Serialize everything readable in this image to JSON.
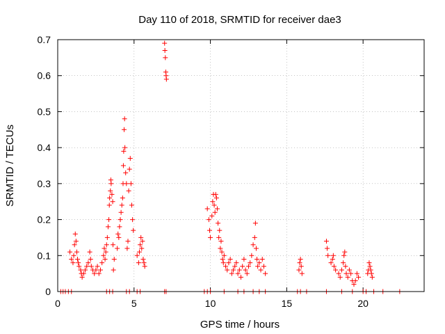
{
  "chart_data": {
    "type": "scatter",
    "title": "Day 110 of 2018, SRMTID for receiver dae3",
    "xlabel": "GPS time / hours",
    "ylabel": "SRMTID / TECUs",
    "xlim": [
      0,
      24
    ],
    "ylim": [
      0,
      0.7
    ],
    "xticks": [
      0,
      5,
      10,
      15,
      20
    ],
    "yticks": [
      0,
      0.1,
      0.2,
      0.3,
      0.4,
      0.5,
      0.6,
      0.7
    ],
    "xtick_labels": [
      "0",
      "5",
      "10",
      "15",
      "20"
    ],
    "ytick_labels": [
      "0",
      "0.1",
      "0.2",
      "0.3",
      "0.4",
      "0.5",
      "0.6",
      "0.7"
    ],
    "grid": true,
    "marker": "+",
    "marker_color": "#ff0000",
    "series": [
      {
        "name": "SRMTID",
        "points": [
          [
            0.2,
            0
          ],
          [
            0.35,
            0
          ],
          [
            0.5,
            0
          ],
          [
            0.7,
            0
          ],
          [
            0.9,
            0
          ],
          [
            0.8,
            0.11
          ],
          [
            0.9,
            0.09
          ],
          [
            1.0,
            0.08
          ],
          [
            1.05,
            0.1
          ],
          [
            1.1,
            0.13
          ],
          [
            1.15,
            0.16
          ],
          [
            1.2,
            0.14
          ],
          [
            1.25,
            0.11
          ],
          [
            1.3,
            0.09
          ],
          [
            1.35,
            0.08
          ],
          [
            1.4,
            0.07
          ],
          [
            1.5,
            0.06
          ],
          [
            1.55,
            0.05
          ],
          [
            1.6,
            0.04
          ],
          [
            1.7,
            0.05
          ],
          [
            1.8,
            0.06
          ],
          [
            1.9,
            0.07
          ],
          [
            2.0,
            0.08
          ],
          [
            2.1,
            0.11
          ],
          [
            2.15,
            0.09
          ],
          [
            2.2,
            0.07
          ],
          [
            2.3,
            0.06
          ],
          [
            2.4,
            0.05
          ],
          [
            2.5,
            0.06
          ],
          [
            2.6,
            0.07
          ],
          [
            2.7,
            0.05
          ],
          [
            2.8,
            0.06
          ],
          [
            2.9,
            0.08
          ],
          [
            3.0,
            0.1
          ],
          [
            3.05,
            0.12
          ],
          [
            3.1,
            0.09
          ],
          [
            3.15,
            0.11
          ],
          [
            3.2,
            0.13
          ],
          [
            3.25,
            0.15
          ],
          [
            3.3,
            0.18
          ],
          [
            3.35,
            0.2
          ],
          [
            3.38,
            0.24
          ],
          [
            3.4,
            0.26
          ],
          [
            3.45,
            0.28
          ],
          [
            3.48,
            0.31
          ],
          [
            3.5,
            0.3
          ],
          [
            3.55,
            0.27
          ],
          [
            3.6,
            0.25
          ],
          [
            3.62,
            0.13
          ],
          [
            3.65,
            0.06
          ],
          [
            3.7,
            0.09
          ],
          [
            3.9,
            0.12
          ],
          [
            3.95,
            0.16
          ],
          [
            4.0,
            0.15
          ],
          [
            4.05,
            0.18
          ],
          [
            4.1,
            0.2
          ],
          [
            4.15,
            0.22
          ],
          [
            4.2,
            0.24
          ],
          [
            4.25,
            0.26
          ],
          [
            4.28,
            0.3
          ],
          [
            4.3,
            0.35
          ],
          [
            4.32,
            0.39
          ],
          [
            4.35,
            0.45
          ],
          [
            4.38,
            0.48
          ],
          [
            4.4,
            0.4
          ],
          [
            4.45,
            0.33
          ],
          [
            4.5,
            0.3
          ],
          [
            4.55,
            0.12
          ],
          [
            4.6,
            0.14
          ],
          [
            4.65,
            0.28
          ],
          [
            4.7,
            0.34
          ],
          [
            4.75,
            0.37
          ],
          [
            4.8,
            0.3
          ],
          [
            4.85,
            0.24
          ],
          [
            4.9,
            0.2
          ],
          [
            4.95,
            0.17
          ],
          [
            5.2,
            0.1
          ],
          [
            5.3,
            0.08
          ],
          [
            5.35,
            0.11
          ],
          [
            5.4,
            0.13
          ],
          [
            5.45,
            0.15
          ],
          [
            5.5,
            0.12
          ],
          [
            5.55,
            0.14
          ],
          [
            5.6,
            0.09
          ],
          [
            5.65,
            0.08
          ],
          [
            5.7,
            0.07
          ],
          [
            7.0,
            0.69
          ],
          [
            7.02,
            0.67
          ],
          [
            7.05,
            0.65
          ],
          [
            7.08,
            0.61
          ],
          [
            7.1,
            0.6
          ],
          [
            7.12,
            0.59
          ],
          [
            9.8,
            0.23
          ],
          [
            9.9,
            0.2
          ],
          [
            9.95,
            0.17
          ],
          [
            10.0,
            0.15
          ],
          [
            10.1,
            0.21
          ],
          [
            10.15,
            0.25
          ],
          [
            10.2,
            0.27
          ],
          [
            10.25,
            0.24
          ],
          [
            10.3,
            0.22
          ],
          [
            10.35,
            0.27
          ],
          [
            10.4,
            0.26
          ],
          [
            10.45,
            0.23
          ],
          [
            10.5,
            0.19
          ],
          [
            10.55,
            0.15
          ],
          [
            10.6,
            0.17
          ],
          [
            10.65,
            0.12
          ],
          [
            10.7,
            0.14
          ],
          [
            10.75,
            0.11
          ],
          [
            10.8,
            0.09
          ],
          [
            10.85,
            0.08
          ],
          [
            10.9,
            0.1
          ],
          [
            11.0,
            0.07
          ],
          [
            11.1,
            0.06
          ],
          [
            11.2,
            0.08
          ],
          [
            11.3,
            0.09
          ],
          [
            11.4,
            0.05
          ],
          [
            11.5,
            0.06
          ],
          [
            11.6,
            0.07
          ],
          [
            11.7,
            0.08
          ],
          [
            11.8,
            0.05
          ],
          [
            11.9,
            0.06
          ],
          [
            12.0,
            0.04
          ],
          [
            12.1,
            0.07
          ],
          [
            12.2,
            0.09
          ],
          [
            12.3,
            0.06
          ],
          [
            12.4,
            0.05
          ],
          [
            12.5,
            0.07
          ],
          [
            12.6,
            0.08
          ],
          [
            12.7,
            0.1
          ],
          [
            12.8,
            0.13
          ],
          [
            12.9,
            0.15
          ],
          [
            12.95,
            0.19
          ],
          [
            13.0,
            0.12
          ],
          [
            13.05,
            0.09
          ],
          [
            13.1,
            0.07
          ],
          [
            13.2,
            0.08
          ],
          [
            13.3,
            0.06
          ],
          [
            13.4,
            0.09
          ],
          [
            13.5,
            0.07
          ],
          [
            13.6,
            0.05
          ],
          [
            15.8,
            0.06
          ],
          [
            15.85,
            0.08
          ],
          [
            15.9,
            0.09
          ],
          [
            15.95,
            0.07
          ],
          [
            16.0,
            0.05
          ],
          [
            17.6,
            0.14
          ],
          [
            17.65,
            0.12
          ],
          [
            17.7,
            0.1
          ],
          [
            17.9,
            0.08
          ],
          [
            18.0,
            0.09
          ],
          [
            18.05,
            0.1
          ],
          [
            18.1,
            0.07
          ],
          [
            18.2,
            0.06
          ],
          [
            18.4,
            0.05
          ],
          [
            18.5,
            0.04
          ],
          [
            18.6,
            0.06
          ],
          [
            18.7,
            0.08
          ],
          [
            18.75,
            0.1
          ],
          [
            18.8,
            0.11
          ],
          [
            18.85,
            0.07
          ],
          [
            18.9,
            0.05
          ],
          [
            19.0,
            0.04
          ],
          [
            19.1,
            0.06
          ],
          [
            19.2,
            0.05
          ],
          [
            19.3,
            0.03
          ],
          [
            19.4,
            0.02
          ],
          [
            19.5,
            0.03
          ],
          [
            19.6,
            0.05
          ],
          [
            19.7,
            0.04
          ],
          [
            20.3,
            0.05
          ],
          [
            20.35,
            0.06
          ],
          [
            20.4,
            0.08
          ],
          [
            20.45,
            0.07
          ],
          [
            20.5,
            0.06
          ],
          [
            20.55,
            0.05
          ],
          [
            20.6,
            0.04
          ],
          [
            3.2,
            0
          ],
          [
            3.4,
            0
          ],
          [
            3.6,
            0
          ],
          [
            4.5,
            0
          ],
          [
            4.7,
            0
          ],
          [
            5.2,
            0
          ],
          [
            5.4,
            0
          ],
          [
            7.0,
            0
          ],
          [
            7.1,
            0
          ],
          [
            9.6,
            0
          ],
          [
            9.8,
            0
          ],
          [
            10.0,
            0
          ],
          [
            10.9,
            0
          ],
          [
            11.8,
            0
          ],
          [
            12.2,
            0
          ],
          [
            12.8,
            0
          ],
          [
            13.2,
            0
          ],
          [
            13.6,
            0
          ],
          [
            15.7,
            0
          ],
          [
            15.9,
            0
          ],
          [
            16.3,
            0
          ],
          [
            17.6,
            0
          ],
          [
            18.6,
            0
          ],
          [
            19.3,
            0
          ],
          [
            20.0,
            0
          ],
          [
            20.2,
            0
          ],
          [
            20.7,
            0
          ],
          [
            21.3,
            0
          ],
          [
            22.4,
            0
          ]
        ]
      }
    ]
  }
}
